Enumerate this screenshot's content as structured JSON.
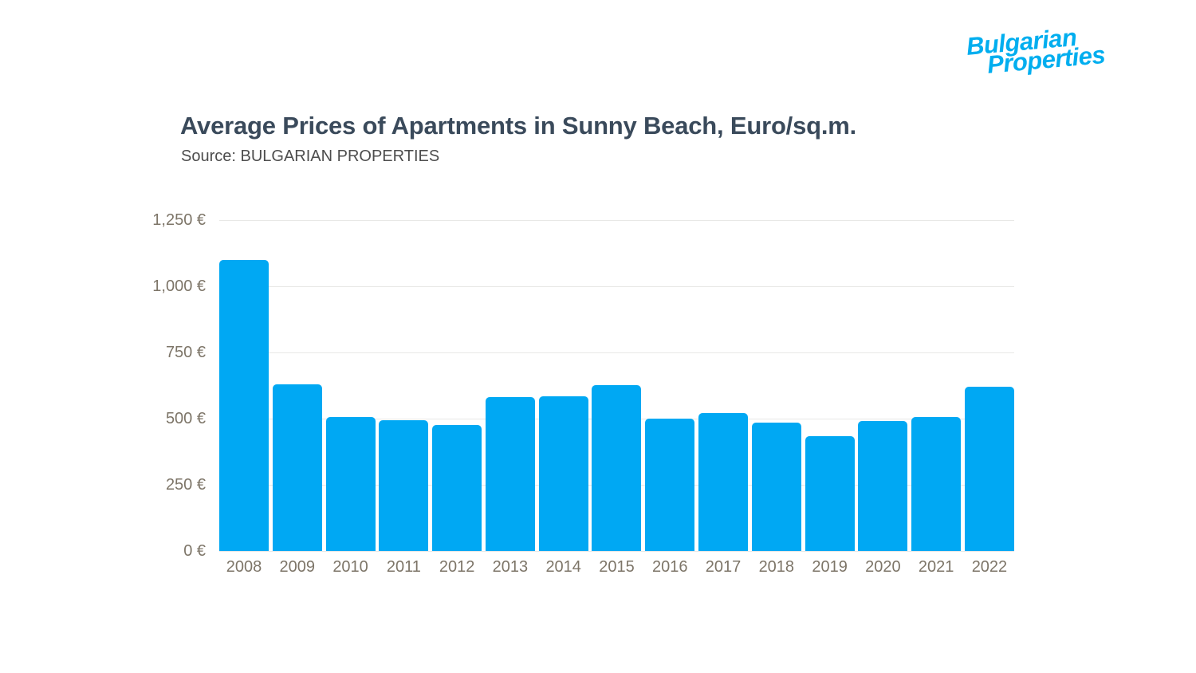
{
  "logo": {
    "line1": "Bulgarian",
    "line2": "Properties",
    "color": "#00AEEF"
  },
  "header": {
    "title": "Average Prices of Apartments in Sunny Beach, Euro/sq.m.",
    "source": "Source: BULGARIAN PROPERTIES",
    "title_color": "#3A4A5B",
    "source_color": "#4D4D4D"
  },
  "chart_data": {
    "type": "bar",
    "title": "Average Prices of Apartments in Sunny Beach, Euro/sq.m.",
    "subtitle": "Source: BULGARIAN PROPERTIES",
    "categories": [
      "2008",
      "2009",
      "2010",
      "2011",
      "2012",
      "2013",
      "2014",
      "2015",
      "2016",
      "2017",
      "2018",
      "2019",
      "2020",
      "2021",
      "2022"
    ],
    "values": [
      1100,
      630,
      505,
      495,
      475,
      580,
      585,
      625,
      500,
      520,
      485,
      435,
      490,
      505,
      620
    ],
    "xlabel": "",
    "ylabel": "",
    "ylim": [
      0,
      1250
    ],
    "ytick_step": 250,
    "ytick_values": [
      0,
      250,
      500,
      750,
      1000,
      1250
    ],
    "ytick_labels": [
      "0 €",
      "250 €",
      "500 €",
      "750 €",
      "1,000 €",
      "1,250 €"
    ],
    "grid": true,
    "legend": "none",
    "bar_color": "#00A8F3",
    "gridline_color": "#E8E8E6",
    "tick_color": "#7D7568"
  }
}
